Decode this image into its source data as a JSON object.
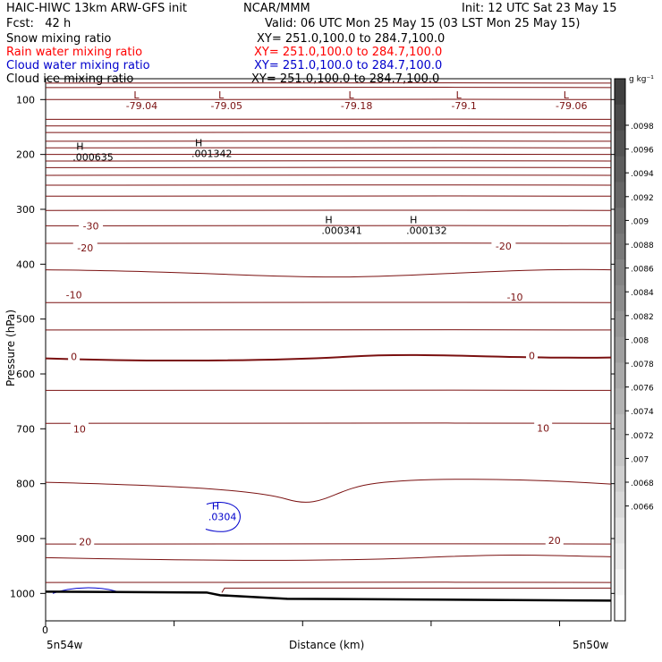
{
  "header": {
    "model": "HAIC-HIWC 13km ARW-GFS init",
    "center": "NCAR/MMM",
    "init": "Init: 12 UTC Sat 23 May 15",
    "fcst": "Fcst:   42 h",
    "valid": "Valid: 06 UTC Mon 25 May 15 (03 LST Mon 25 May 15)"
  },
  "fields": [
    {
      "name": "Snow mixing ratio",
      "xy": "XY= 251.0,100.0 to 284.7,100.0",
      "color": "#000000"
    },
    {
      "name": "Rain water mixing ratio",
      "xy": "XY= 251.0,100.0 to 284.7,100.0",
      "color": "#ff0000"
    },
    {
      "name": "Cloud water mixing ratio",
      "xy": "XY= 251.0,100.0 to 284.7,100.0",
      "color": "#0000cc"
    },
    {
      "name": "Cloud ice mixing ratio",
      "xy": "XY= 251.0,100.0 to 284.7,100.0",
      "color": "#000000"
    }
  ],
  "chart_data": {
    "type": "contour",
    "ylabel": "Pressure (hPa)",
    "xlabel": "Distance (km)",
    "ylim": [
      1050,
      62
    ],
    "yticks": [
      100,
      200,
      300,
      400,
      500,
      600,
      700,
      800,
      900,
      1000
    ],
    "yticklabels": [
      "100",
      "200",
      "300",
      "400",
      "500",
      "600",
      "700",
      "800",
      "900",
      "1000"
    ],
    "x_origin_label": "0",
    "x_start_label": "5n54w",
    "x_end_label": "5n50w",
    "temperature_labels": [
      {
        "text": "-30",
        "x": 0.08,
        "p": 330
      },
      {
        "text": "-20",
        "x": 0.07,
        "p": 370
      },
      {
        "text": "-20",
        "x": 0.81,
        "p": 367
      },
      {
        "text": "-10",
        "x": 0.05,
        "p": 456
      },
      {
        "text": "-10",
        "x": 0.83,
        "p": 460
      },
      {
        "text": "0",
        "x": 0.05,
        "p": 568
      },
      {
        "text": "0",
        "x": 0.86,
        "p": 567
      },
      {
        "text": "10",
        "x": 0.06,
        "p": 700
      },
      {
        "text": "10",
        "x": 0.88,
        "p": 699
      },
      {
        "text": "20",
        "x": 0.07,
        "p": 906
      },
      {
        "text": "20",
        "x": 0.9,
        "p": 903
      }
    ],
    "low_labels": [
      {
        "mark": "L",
        "value": "-79.04",
        "x": 0.17
      },
      {
        "mark": "L",
        "value": "-79.05",
        "x": 0.32
      },
      {
        "mark": "L",
        "value": "-79.18",
        "x": 0.55
      },
      {
        "mark": "L",
        "value": "-79.1",
        "x": 0.74
      },
      {
        "mark": "L",
        "value": "-79.06",
        "x": 0.93
      }
    ],
    "high_labels": [
      {
        "mark": "H",
        "value": ".000635",
        "x": 0.07,
        "p": 205,
        "series": "snow"
      },
      {
        "mark": "H",
        "value": ".001342",
        "x": 0.28,
        "p": 198,
        "series": "snow"
      },
      {
        "mark": "H",
        "value": ".000341",
        "x": 0.51,
        "p": 338,
        "series": "snow"
      },
      {
        "mark": "H",
        "value": ".000132",
        "x": 0.66,
        "p": 338,
        "series": "snow"
      },
      {
        "mark": "H",
        "value": ".0304",
        "x": 0.31,
        "p": 860,
        "series": "cloud water"
      }
    ],
    "colorbar": {
      "unit": "g kg⁻¹",
      "labels": [
        ".0098",
        ".0096",
        ".0094",
        ".0092",
        ".009",
        ".0088",
        ".0086",
        ".0084",
        ".0082",
        ".008",
        ".0078",
        ".0076",
        ".0074",
        ".0072",
        ".007",
        ".0068",
        ".0066"
      ]
    }
  }
}
